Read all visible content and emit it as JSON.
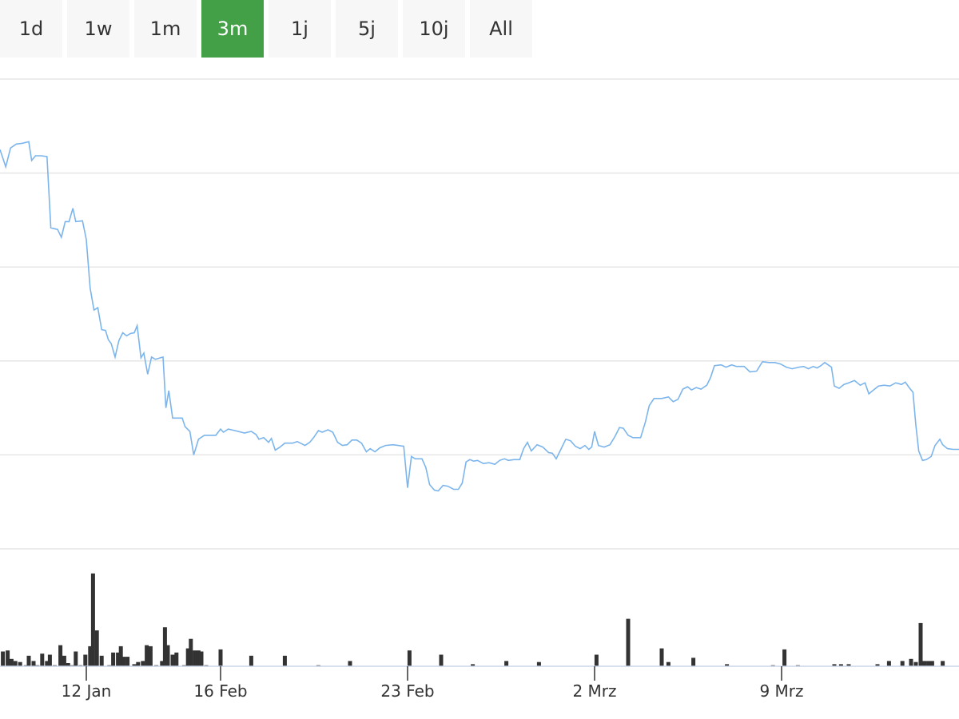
{
  "range_selector": {
    "buttons": [
      {
        "label": "1d",
        "active": false
      },
      {
        "label": "1w",
        "active": false
      },
      {
        "label": "1m",
        "active": false
      },
      {
        "label": "3m",
        "active": true
      },
      {
        "label": "1j",
        "active": false
      },
      {
        "label": "5j",
        "active": false
      },
      {
        "label": "10j",
        "active": false
      },
      {
        "label": "All",
        "active": false
      }
    ],
    "active_color": "#43a047"
  },
  "chart_data": {
    "type": "line",
    "x_ticks": [
      {
        "label": "12 Jan",
        "at": 0.09
      },
      {
        "label": "16 Feb",
        "at": 0.23
      },
      {
        "label": "23 Feb",
        "at": 0.425
      },
      {
        "label": "2 Mrz",
        "at": 0.62
      },
      {
        "label": "9 Mrz",
        "at": 0.815
      }
    ],
    "grid": true,
    "line_color": "#7cb5ec",
    "volume_color": "#333333",
    "price_series": [
      [
        0.0,
        71.0
      ],
      [
        0.006,
        68.8
      ],
      [
        0.011,
        71.2
      ],
      [
        0.017,
        71.7
      ],
      [
        0.023,
        71.8
      ],
      [
        0.03,
        72.0
      ],
      [
        0.033,
        69.6
      ],
      [
        0.037,
        70.2
      ],
      [
        0.043,
        70.2
      ],
      [
        0.049,
        70.1
      ],
      [
        0.053,
        61.0
      ],
      [
        0.06,
        60.8
      ],
      [
        0.064,
        59.8
      ],
      [
        0.068,
        61.8
      ],
      [
        0.072,
        61.8
      ],
      [
        0.076,
        63.5
      ],
      [
        0.079,
        61.8
      ],
      [
        0.086,
        61.9
      ],
      [
        0.09,
        59.5
      ],
      [
        0.094,
        53.3
      ],
      [
        0.098,
        50.5
      ],
      [
        0.102,
        50.8
      ],
      [
        0.106,
        48.0
      ],
      [
        0.11,
        47.9
      ],
      [
        0.113,
        46.7
      ],
      [
        0.116,
        46.2
      ],
      [
        0.12,
        44.5
      ],
      [
        0.124,
        46.6
      ],
      [
        0.128,
        47.6
      ],
      [
        0.132,
        47.2
      ],
      [
        0.136,
        47.5
      ],
      [
        0.14,
        47.6
      ],
      [
        0.143,
        48.5
      ],
      [
        0.147,
        44.4
      ],
      [
        0.15,
        45.0
      ],
      [
        0.154,
        42.3
      ],
      [
        0.158,
        44.5
      ],
      [
        0.162,
        44.2
      ],
      [
        0.17,
        44.5
      ],
      [
        0.173,
        38.0
      ],
      [
        0.176,
        40.2
      ],
      [
        0.18,
        36.7
      ],
      [
        0.19,
        36.7
      ],
      [
        0.193,
        35.6
      ],
      [
        0.198,
        35.0
      ],
      [
        0.202,
        32.0
      ],
      [
        0.207,
        34.0
      ],
      [
        0.213,
        34.5
      ],
      [
        0.225,
        34.5
      ],
      [
        0.23,
        35.3
      ],
      [
        0.233,
        34.9
      ],
      [
        0.238,
        35.3
      ],
      [
        0.245,
        35.1
      ],
      [
        0.255,
        34.8
      ],
      [
        0.262,
        35.0
      ],
      [
        0.267,
        34.6
      ],
      [
        0.27,
        34.0
      ],
      [
        0.275,
        34.2
      ],
      [
        0.28,
        33.6
      ],
      [
        0.283,
        34.1
      ],
      [
        0.287,
        32.6
      ],
      [
        0.292,
        33.0
      ],
      [
        0.297,
        33.5
      ],
      [
        0.305,
        33.5
      ],
      [
        0.31,
        33.7
      ],
      [
        0.318,
        33.2
      ],
      [
        0.323,
        33.6
      ],
      [
        0.327,
        34.2
      ],
      [
        0.332,
        35.1
      ],
      [
        0.336,
        34.9
      ],
      [
        0.342,
        35.2
      ],
      [
        0.347,
        34.9
      ],
      [
        0.352,
        33.6
      ],
      [
        0.357,
        33.2
      ],
      [
        0.362,
        33.3
      ],
      [
        0.367,
        33.9
      ],
      [
        0.372,
        33.9
      ],
      [
        0.377,
        33.5
      ],
      [
        0.382,
        32.4
      ],
      [
        0.386,
        32.8
      ],
      [
        0.391,
        32.4
      ],
      [
        0.396,
        32.9
      ],
      [
        0.402,
        33.2
      ],
      [
        0.41,
        33.3
      ],
      [
        0.421,
        33.1
      ],
      [
        0.425,
        27.8
      ],
      [
        0.429,
        31.8
      ],
      [
        0.433,
        31.5
      ],
      [
        0.44,
        31.5
      ],
      [
        0.444,
        30.4
      ],
      [
        0.448,
        28.2
      ],
      [
        0.453,
        27.5
      ],
      [
        0.457,
        27.4
      ],
      [
        0.462,
        28.1
      ],
      [
        0.467,
        28.0
      ],
      [
        0.473,
        27.6
      ],
      [
        0.478,
        27.6
      ],
      [
        0.482,
        28.4
      ],
      [
        0.486,
        31.1
      ],
      [
        0.49,
        31.4
      ],
      [
        0.494,
        31.2
      ],
      [
        0.498,
        31.3
      ],
      [
        0.504,
        30.9
      ],
      [
        0.51,
        31.0
      ],
      [
        0.516,
        30.8
      ],
      [
        0.521,
        31.3
      ],
      [
        0.526,
        31.5
      ],
      [
        0.53,
        31.3
      ],
      [
        0.536,
        31.4
      ],
      [
        0.542,
        31.4
      ],
      [
        0.546,
        32.8
      ],
      [
        0.55,
        33.6
      ],
      [
        0.554,
        32.5
      ],
      [
        0.56,
        33.3
      ],
      [
        0.566,
        33.0
      ],
      [
        0.572,
        32.3
      ],
      [
        0.576,
        32.2
      ],
      [
        0.58,
        31.5
      ],
      [
        0.584,
        32.5
      ],
      [
        0.59,
        34.0
      ],
      [
        0.595,
        33.8
      ],
      [
        0.6,
        33.1
      ],
      [
        0.605,
        32.8
      ],
      [
        0.61,
        33.2
      ],
      [
        0.614,
        32.7
      ],
      [
        0.617,
        33.0
      ],
      [
        0.62,
        35.0
      ],
      [
        0.624,
        33.2
      ],
      [
        0.63,
        33.0
      ],
      [
        0.636,
        33.3
      ],
      [
        0.641,
        34.3
      ],
      [
        0.646,
        35.5
      ],
      [
        0.65,
        35.4
      ],
      [
        0.655,
        34.5
      ],
      [
        0.66,
        34.2
      ],
      [
        0.668,
        34.2
      ],
      [
        0.673,
        36.2
      ],
      [
        0.677,
        38.3
      ],
      [
        0.682,
        39.2
      ],
      [
        0.69,
        39.2
      ],
      [
        0.697,
        39.4
      ],
      [
        0.702,
        38.8
      ],
      [
        0.707,
        39.1
      ],
      [
        0.712,
        40.4
      ],
      [
        0.717,
        40.7
      ],
      [
        0.721,
        40.3
      ],
      [
        0.726,
        40.6
      ],
      [
        0.731,
        40.4
      ],
      [
        0.737,
        40.9
      ],
      [
        0.741,
        41.9
      ],
      [
        0.745,
        43.4
      ],
      [
        0.752,
        43.5
      ],
      [
        0.757,
        43.2
      ],
      [
        0.763,
        43.5
      ],
      [
        0.768,
        43.3
      ],
      [
        0.776,
        43.3
      ],
      [
        0.782,
        42.6
      ],
      [
        0.789,
        42.7
      ],
      [
        0.795,
        43.9
      ],
      [
        0.802,
        43.8
      ],
      [
        0.808,
        43.8
      ],
      [
        0.814,
        43.6
      ],
      [
        0.82,
        43.2
      ],
      [
        0.826,
        43.0
      ],
      [
        0.833,
        43.2
      ],
      [
        0.838,
        43.3
      ],
      [
        0.843,
        43.0
      ],
      [
        0.848,
        43.3
      ],
      [
        0.852,
        43.1
      ],
      [
        0.856,
        43.4
      ],
      [
        0.86,
        43.8
      ],
      [
        0.867,
        43.2
      ],
      [
        0.87,
        40.8
      ],
      [
        0.875,
        40.5
      ],
      [
        0.88,
        41.0
      ],
      [
        0.885,
        41.2
      ],
      [
        0.891,
        41.5
      ],
      [
        0.897,
        40.9
      ],
      [
        0.902,
        41.2
      ],
      [
        0.906,
        39.8
      ],
      [
        0.91,
        40.2
      ],
      [
        0.916,
        40.8
      ],
      [
        0.922,
        40.9
      ],
      [
        0.928,
        40.8
      ],
      [
        0.934,
        41.2
      ],
      [
        0.94,
        41.0
      ],
      [
        0.944,
        41.3
      ],
      [
        0.948,
        40.6
      ],
      [
        0.952,
        40.0
      ],
      [
        0.955,
        35.8
      ],
      [
        0.958,
        32.5
      ],
      [
        0.962,
        31.3
      ],
      [
        0.966,
        31.4
      ],
      [
        0.971,
        31.8
      ],
      [
        0.975,
        33.2
      ],
      [
        0.98,
        34.0
      ],
      [
        0.983,
        33.3
      ],
      [
        0.988,
        32.8
      ],
      [
        0.994,
        32.7
      ],
      [
        1.0,
        32.7
      ]
    ],
    "volume_bars": [
      [
        0.003,
        14
      ],
      [
        0.008,
        15
      ],
      [
        0.012,
        7
      ],
      [
        0.016,
        5
      ],
      [
        0.021,
        4
      ],
      [
        0.027,
        1
      ],
      [
        0.03,
        10
      ],
      [
        0.035,
        5
      ],
      [
        0.039,
        1
      ],
      [
        0.044,
        12
      ],
      [
        0.049,
        5
      ],
      [
        0.052,
        11
      ],
      [
        0.057,
        1
      ],
      [
        0.063,
        20
      ],
      [
        0.067,
        10
      ],
      [
        0.071,
        3
      ],
      [
        0.075,
        1
      ],
      [
        0.079,
        14
      ],
      [
        0.084,
        1
      ],
      [
        0.089,
        11
      ],
      [
        0.094,
        19
      ],
      [
        0.097,
        88
      ],
      [
        0.101,
        34
      ],
      [
        0.106,
        10
      ],
      [
        0.114,
        1
      ],
      [
        0.118,
        13
      ],
      [
        0.123,
        13
      ],
      [
        0.126,
        19
      ],
      [
        0.129,
        9
      ],
      [
        0.133,
        9
      ],
      [
        0.14,
        2
      ],
      [
        0.144,
        4
      ],
      [
        0.149,
        5
      ],
      [
        0.153,
        20
      ],
      [
        0.157,
        19
      ],
      [
        0.163,
        1
      ],
      [
        0.169,
        5
      ],
      [
        0.172,
        37
      ],
      [
        0.175,
        20
      ],
      [
        0.18,
        11
      ],
      [
        0.184,
        13
      ],
      [
        0.192,
        1
      ],
      [
        0.196,
        17
      ],
      [
        0.199,
        26
      ],
      [
        0.203,
        15
      ],
      [
        0.207,
        15
      ],
      [
        0.21,
        14
      ],
      [
        0.215,
        1
      ],
      [
        0.23,
        16
      ],
      [
        0.262,
        10
      ],
      [
        0.297,
        10
      ],
      [
        0.332,
        1
      ],
      [
        0.365,
        5
      ],
      [
        0.427,
        15
      ],
      [
        0.46,
        11
      ],
      [
        0.493,
        2
      ],
      [
        0.528,
        5
      ],
      [
        0.562,
        4
      ],
      [
        0.622,
        11
      ],
      [
        0.655,
        45
      ],
      [
        0.69,
        17
      ],
      [
        0.697,
        4
      ],
      [
        0.723,
        8
      ],
      [
        0.758,
        2
      ],
      [
        0.806,
        1
      ],
      [
        0.818,
        16
      ],
      [
        0.832,
        1
      ],
      [
        0.87,
        2
      ],
      [
        0.877,
        2
      ],
      [
        0.885,
        2
      ],
      [
        0.915,
        2
      ],
      [
        0.927,
        5
      ],
      [
        0.941,
        5
      ],
      [
        0.95,
        7
      ],
      [
        0.955,
        4
      ],
      [
        0.96,
        41
      ],
      [
        0.964,
        5
      ],
      [
        0.968,
        5
      ],
      [
        0.972,
        5
      ],
      [
        0.983,
        5
      ]
    ]
  }
}
